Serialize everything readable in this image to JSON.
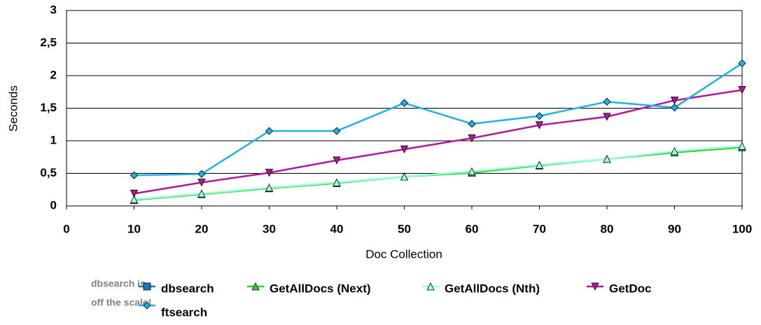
{
  "chart_data": {
    "type": "line",
    "x_label": "Doc Collection",
    "y_label": "Seconds",
    "annotation": [
      "dbsearch is",
      "off the scale!"
    ],
    "x": [
      10,
      20,
      30,
      40,
      50,
      60,
      70,
      80,
      90,
      100
    ],
    "xlim": [
      0,
      100
    ],
    "xticks": [
      0,
      10,
      20,
      30,
      40,
      50,
      60,
      70,
      80,
      90,
      100
    ],
    "ylim": [
      0,
      3
    ],
    "yticks": [
      0,
      {
        "value": 0.5,
        "label": "0,5"
      },
      1,
      {
        "value": 1.5,
        "label": "1,5"
      },
      2,
      {
        "value": 2.5,
        "label": "2,5"
      },
      3
    ],
    "grid": true,
    "series": [
      {
        "name": "dbsearch",
        "color": "#1f77b4",
        "marker": "square",
        "values": [
          null,
          null,
          null,
          null,
          null,
          null,
          null,
          null,
          null,
          null
        ]
      },
      {
        "name": "GetAllDocs (Next)",
        "color": "#33cc33",
        "marker": "triangle",
        "values": [
          0.09,
          0.18,
          0.27,
          0.35,
          0.45,
          0.51,
          0.62,
          0.72,
          0.82,
          0.9
        ]
      },
      {
        "name": "GetAllDocs (Nth)",
        "color": "#99ffdd",
        "marker": "triangle",
        "values": [
          0.1,
          0.19,
          0.28,
          0.36,
          0.45,
          0.53,
          0.63,
          0.72,
          0.84,
          0.92
        ]
      },
      {
        "name": "GetDoc",
        "color": "#b0179a",
        "marker": "triangle-down",
        "values": [
          0.19,
          0.36,
          0.51,
          0.7,
          0.87,
          1.04,
          1.24,
          1.37,
          1.62,
          1.78
        ]
      },
      {
        "name": "ftsearch",
        "color": "#1fb1e8",
        "marker": "diamond",
        "values": [
          0.47,
          0.49,
          1.15,
          1.15,
          1.58,
          1.26,
          1.38,
          1.6,
          1.51,
          2.19
        ]
      }
    ]
  }
}
